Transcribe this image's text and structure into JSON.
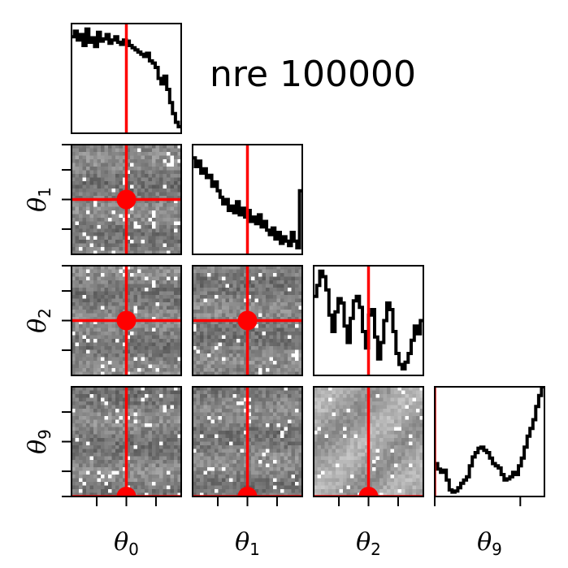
{
  "chart_data": {
    "type": "corner",
    "title": "nre 100000",
    "parameters": [
      "θ0",
      "θ1",
      "θ2",
      "θ9"
    ],
    "axis_labels": [
      {
        "symbol": "θ",
        "sub": "0"
      },
      {
        "symbol": "θ",
        "sub": "1"
      },
      {
        "symbol": "θ",
        "sub": "2"
      },
      {
        "symbol": "θ",
        "sub": "9"
      }
    ],
    "truth_marker_color": "#ff0000",
    "line_color": "#000000",
    "diagonal_histograms": [
      {
        "parameter": "θ0",
        "truth": 0.5,
        "density": [
          0.88,
          0.93,
          0.85,
          0.9,
          0.8,
          0.95,
          0.83,
          0.87,
          0.79,
          0.92,
          0.84,
          0.86,
          0.9,
          0.82,
          0.85,
          0.88,
          0.83,
          0.81,
          0.85,
          0.84,
          0.8,
          0.78,
          0.76,
          0.74,
          0.72,
          0.7,
          0.73,
          0.66,
          0.64,
          0.6,
          0.5,
          0.45,
          0.52,
          0.4,
          0.28,
          0.18,
          0.1,
          0.06
        ]
      },
      {
        "parameter": "θ1",
        "truth": 0.5,
        "density": [
          0.88,
          0.8,
          0.85,
          0.74,
          0.78,
          0.7,
          0.72,
          0.62,
          0.66,
          0.58,
          0.52,
          0.46,
          0.5,
          0.4,
          0.44,
          0.38,
          0.48,
          0.36,
          0.42,
          0.34,
          0.4,
          0.3,
          0.34,
          0.28,
          0.36,
          0.25,
          0.3,
          0.22,
          0.18,
          0.24,
          0.14,
          0.2,
          0.1,
          0.16,
          0.12,
          0.08,
          0.2,
          0.12,
          0.06,
          0.58
        ]
      },
      {
        "parameter": "θ2",
        "truth": 0.5,
        "density": [
          0.72,
          0.82,
          0.95,
          0.9,
          0.78,
          0.55,
          0.4,
          0.58,
          0.7,
          0.66,
          0.45,
          0.3,
          0.52,
          0.68,
          0.72,
          0.62,
          0.4,
          0.25,
          0.55,
          0.6,
          0.35,
          0.15,
          0.3,
          0.5,
          0.66,
          0.6,
          0.4,
          0.2,
          0.1,
          0.06,
          0.12,
          0.2,
          0.32,
          0.45,
          0.38,
          0.5
        ]
      },
      {
        "parameter": "θ9",
        "truth": 0.0,
        "density": [
          0.3,
          0.25,
          0.22,
          0.24,
          0.15,
          0.06,
          0.04,
          0.05,
          0.08,
          0.12,
          0.15,
          0.18,
          0.28,
          0.36,
          0.4,
          0.44,
          0.45,
          0.42,
          0.4,
          0.35,
          0.3,
          0.28,
          0.26,
          0.2,
          0.15,
          0.16,
          0.18,
          0.22,
          0.2,
          0.28,
          0.35,
          0.45,
          0.55,
          0.62,
          0.7,
          0.82,
          0.92,
          1.0
        ]
      }
    ],
    "pair_panels": [
      {
        "x": "θ0",
        "y": "θ1",
        "truth": [
          0.5,
          0.5
        ]
      },
      {
        "x": "θ0",
        "y": "θ2",
        "truth": [
          0.5,
          0.5
        ]
      },
      {
        "x": "θ1",
        "y": "θ2",
        "truth": [
          0.5,
          0.5
        ]
      },
      {
        "x": "θ0",
        "y": "θ9",
        "truth": [
          0.5,
          0.0
        ]
      },
      {
        "x": "θ1",
        "y": "θ9",
        "truth": [
          0.5,
          0.0
        ]
      },
      {
        "x": "θ2",
        "y": "θ9",
        "truth": [
          0.5,
          0.0
        ]
      }
    ],
    "grid": false
  }
}
